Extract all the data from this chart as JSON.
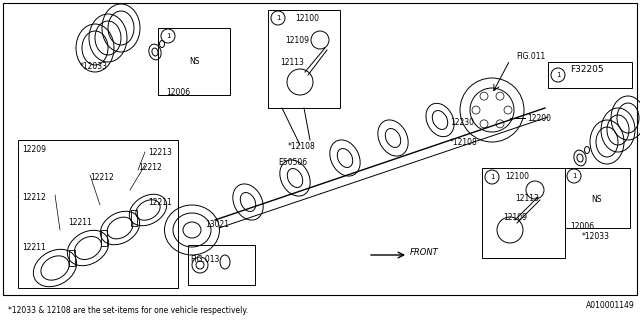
{
  "bg_color": "#ffffff",
  "line_color": "#000000",
  "text_color": "#000000",
  "fig_width": 6.4,
  "fig_height": 3.2,
  "dpi": 100,
  "footnote": "*12033 & 12108 are the set-items for one vehicle respectively.",
  "part_id": "A010001149",
  "ref_box_label": "F32205"
}
